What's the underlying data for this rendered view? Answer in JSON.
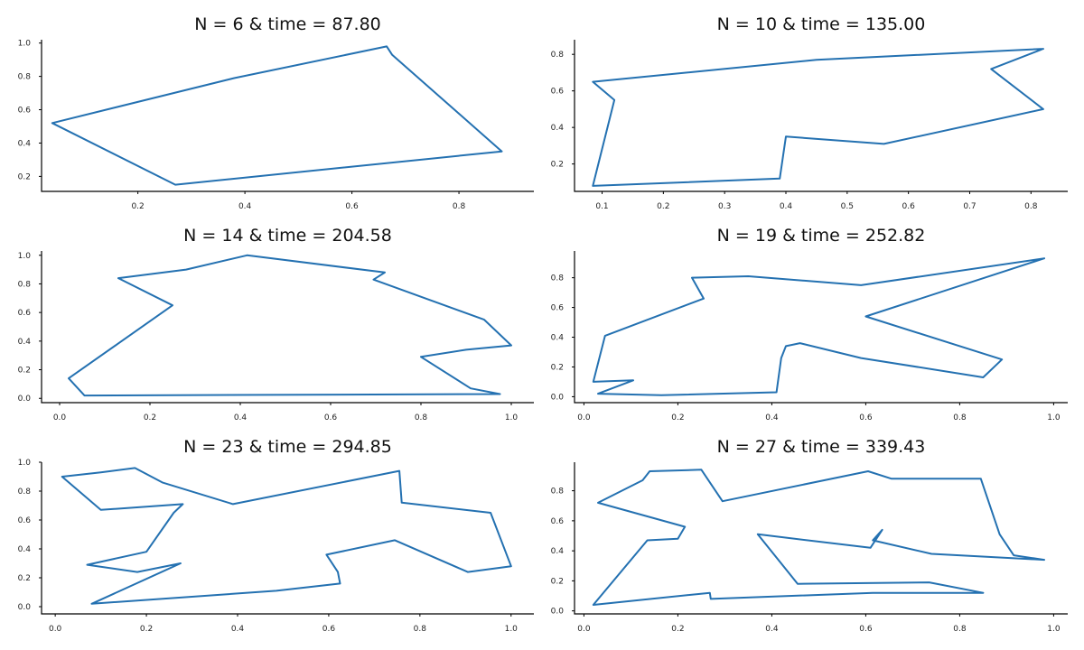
{
  "colors": {
    "line": "#2471b1",
    "axis": "#000000",
    "background": "#ffffff"
  },
  "chart_data": [
    {
      "type": "line",
      "title": "N = 6 & time = 87.80",
      "xlim": [
        0.02,
        0.94
      ],
      "ylim": [
        0.11,
        1.02
      ],
      "xticks": [
        "0.2",
        "0.4",
        "0.6",
        "0.8"
      ],
      "yticks": [
        "0.2",
        "0.4",
        "0.6",
        "0.8",
        "1.0"
      ],
      "x": [
        0.665,
        0.675,
        0.88,
        0.27,
        0.04,
        0.38,
        0.665
      ],
      "y": [
        0.98,
        0.93,
        0.35,
        0.15,
        0.52,
        0.79,
        0.98
      ]
    },
    {
      "type": "line",
      "title": "N = 10 & time = 135.00",
      "xlim": [
        0.055,
        0.86
      ],
      "ylim": [
        0.05,
        0.88
      ],
      "xticks": [
        "0.1",
        "0.2",
        "0.3",
        "0.4",
        "0.5",
        "0.6",
        "0.7",
        "0.8"
      ],
      "yticks": [
        "0.2",
        "0.4",
        "0.6",
        "0.8"
      ],
      "x": [
        0.82,
        0.735,
        0.82,
        0.56,
        0.4,
        0.39,
        0.085,
        0.12,
        0.085,
        0.45,
        0.82
      ],
      "y": [
        0.83,
        0.72,
        0.5,
        0.31,
        0.35,
        0.12,
        0.08,
        0.55,
        0.65,
        0.77,
        0.83
      ]
    },
    {
      "type": "line",
      "title": "N = 14 & time = 204.58",
      "xlim": [
        -0.04,
        1.05
      ],
      "ylim": [
        -0.03,
        1.03
      ],
      "xticks": [
        "0.0",
        "0.2",
        "0.4",
        "0.6",
        "0.8",
        "1.0"
      ],
      "yticks": [
        "0.0",
        "0.2",
        "0.4",
        "0.6",
        "0.8",
        "1.0"
      ],
      "x": [
        0.415,
        0.72,
        0.695,
        0.94,
        1.0,
        0.9,
        0.8,
        0.91,
        0.975,
        0.055,
        0.02,
        0.25,
        0.13,
        0.28,
        0.415
      ],
      "y": [
        1.0,
        0.88,
        0.83,
        0.55,
        0.37,
        0.34,
        0.29,
        0.07,
        0.03,
        0.02,
        0.14,
        0.65,
        0.84,
        0.9,
        1.0
      ]
    },
    {
      "type": "line",
      "title": "N = 19 & time = 252.82",
      "xlim": [
        -0.02,
        1.03
      ],
      "ylim": [
        -0.04,
        0.98
      ],
      "xticks": [
        "0.0",
        "0.2",
        "0.4",
        "0.6",
        "0.8",
        "1.0"
      ],
      "yticks": [
        "0.0",
        "0.2",
        "0.4",
        "0.6",
        "0.8"
      ],
      "x": [
        0.98,
        0.6,
        0.89,
        0.85,
        0.59,
        0.46,
        0.43,
        0.42,
        0.41,
        0.165,
        0.03,
        0.105,
        0.02,
        0.045,
        0.255,
        0.23,
        0.35,
        0.59,
        0.98
      ],
      "y": [
        0.93,
        0.54,
        0.25,
        0.13,
        0.26,
        0.36,
        0.34,
        0.26,
        0.03,
        0.01,
        0.02,
        0.11,
        0.1,
        0.41,
        0.66,
        0.8,
        0.81,
        0.75,
        0.93
      ]
    },
    {
      "type": "line",
      "title": "N = 23 & time = 294.85",
      "xlim": [
        -0.03,
        1.05
      ],
      "ylim": [
        -0.05,
        1.0
      ],
      "xticks": [
        "0.0",
        "0.2",
        "0.4",
        "0.6",
        "0.8",
        "1.0"
      ],
      "yticks": [
        "0.0",
        "0.2",
        "0.4",
        "0.6",
        "0.8",
        "1.0"
      ],
      "x": [
        0.755,
        0.76,
        0.955,
        1.0,
        0.905,
        0.745,
        0.595,
        0.62,
        0.625,
        0.485,
        0.08,
        0.275,
        0.18,
        0.07,
        0.2,
        0.26,
        0.28,
        0.1,
        0.015,
        0.1,
        0.175,
        0.235,
        0.39,
        0.755
      ],
      "y": [
        0.94,
        0.72,
        0.65,
        0.28,
        0.24,
        0.46,
        0.36,
        0.24,
        0.16,
        0.11,
        0.02,
        0.3,
        0.24,
        0.29,
        0.38,
        0.65,
        0.71,
        0.67,
        0.9,
        0.93,
        0.96,
        0.86,
        0.71,
        0.94
      ]
    },
    {
      "type": "line",
      "title": "N = 27 & time = 339.43",
      "xlim": [
        -0.02,
        1.03
      ],
      "ylim": [
        -0.02,
        0.99
      ],
      "xticks": [
        "0.0",
        "0.2",
        "0.4",
        "0.6",
        "0.8",
        "1.0"
      ],
      "yticks": [
        "0.0",
        "0.2",
        "0.4",
        "0.6",
        "0.8"
      ],
      "x": [
        0.635,
        0.61,
        0.37,
        0.455,
        0.735,
        0.85,
        0.615,
        0.27,
        0.268,
        0.02,
        0.135,
        0.2,
        0.215,
        0.03,
        0.125,
        0.14,
        0.25,
        0.295,
        0.605,
        0.655,
        0.845,
        0.885,
        0.915,
        0.98,
        0.74,
        0.615,
        0.635
      ],
      "y": [
        0.54,
        0.42,
        0.51,
        0.18,
        0.19,
        0.12,
        0.12,
        0.08,
        0.12,
        0.04,
        0.47,
        0.48,
        0.56,
        0.72,
        0.87,
        0.93,
        0.94,
        0.73,
        0.93,
        0.88,
        0.88,
        0.51,
        0.37,
        0.34,
        0.38,
        0.47,
        0.54
      ]
    }
  ]
}
